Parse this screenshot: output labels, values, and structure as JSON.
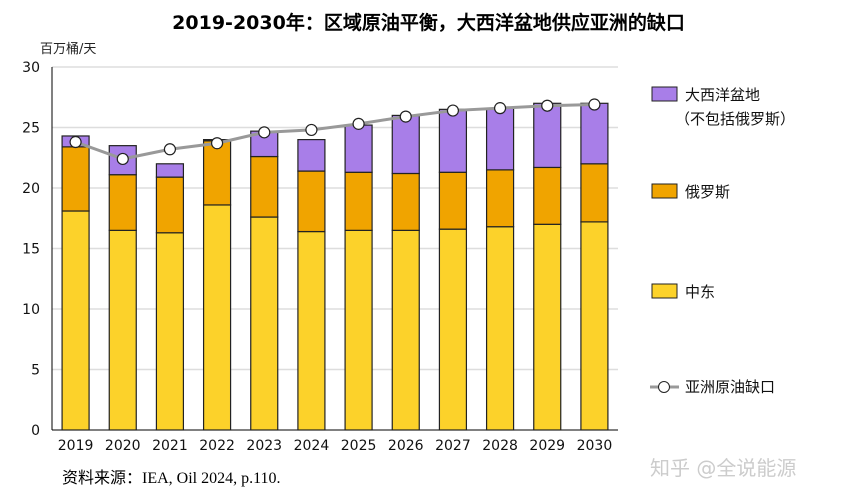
{
  "chart_data": {
    "type": "bar",
    "stacked": true,
    "title": "2019-2030年：区域原油平衡，大西洋盆地供应亚洲的缺口",
    "ylabel": "百万桶/天",
    "xlabel": "",
    "ylim": [
      0,
      30
    ],
    "yticks": [
      "0",
      "5",
      "10",
      "15",
      "20",
      "25",
      "30"
    ],
    "grid": true,
    "legend_position": "right",
    "categories": [
      "2019",
      "2020",
      "2021",
      "2022",
      "2023",
      "2024",
      "2025",
      "2026",
      "2027",
      "2028",
      "2029",
      "2030"
    ],
    "series": [
      {
        "name": "中东",
        "color": "#fcd22a",
        "values": [
          18.1,
          16.5,
          16.3,
          18.6,
          17.6,
          16.4,
          16.5,
          16.5,
          16.6,
          16.8,
          17.0,
          17.2
        ]
      },
      {
        "name": "俄罗斯",
        "color": "#f0a400",
        "values": [
          5.3,
          4.6,
          4.6,
          5.3,
          5.0,
          5.0,
          4.8,
          4.7,
          4.7,
          4.7,
          4.7,
          4.8
        ]
      },
      {
        "name": "大西洋盆地（不包括俄罗斯）",
        "legend_lines": [
          "大西洋盆地",
          "（不包括俄罗斯）"
        ],
        "color": "#a87ee8",
        "values": [
          0.9,
          2.4,
          1.1,
          0.1,
          2.1,
          2.6,
          3.9,
          4.8,
          5.2,
          5.1,
          5.3,
          5.0
        ]
      }
    ],
    "line": {
      "name": "亚洲原油缺口",
      "color": "#999999",
      "values": [
        23.8,
        22.4,
        23.2,
        23.7,
        24.6,
        24.8,
        25.3,
        25.9,
        26.4,
        26.6,
        26.8,
        26.9
      ]
    }
  },
  "source": "资料来源：IEA, Oil 2024, p.110.",
  "watermark": "知乎 @全说能源"
}
